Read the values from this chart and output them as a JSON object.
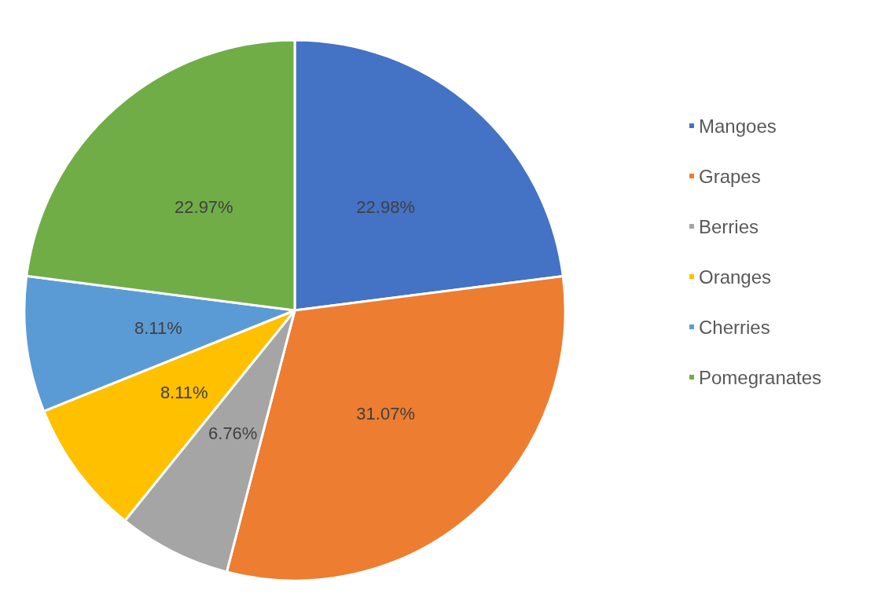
{
  "chart_data": {
    "type": "pie",
    "categories": [
      "Mangoes",
      "Grapes",
      "Berries",
      "Oranges",
      "Cherries",
      "Pomegranates"
    ],
    "values": [
      22.98,
      31.07,
      6.76,
      8.11,
      8.11,
      22.97
    ],
    "value_labels": [
      "22.98%",
      "31.07%",
      "6.76%",
      "8.11%",
      "8.11%",
      "22.97%"
    ],
    "colors": [
      "#4472c4",
      "#ed7d31",
      "#a5a5a5",
      "#ffc000",
      "#5b9bd5",
      "#70ad47"
    ],
    "legend": "right"
  }
}
